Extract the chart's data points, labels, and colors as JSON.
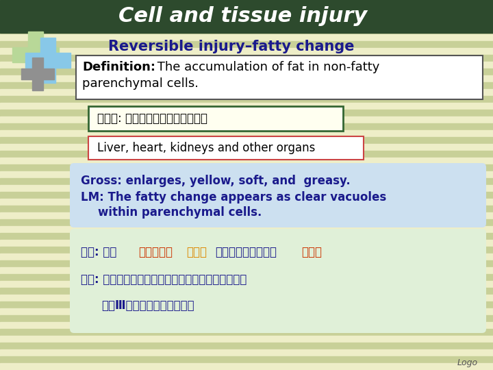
{
  "title": "Cell and tissue injury",
  "title_color": "#FFFFFF",
  "title_bg": "#2d4a2d",
  "subtitle": "Reversible injury–fatty change",
  "subtitle_color": "#1a1a8c",
  "bg_color": "#eeeec8",
  "stripe_color_dark": "#c8d098",
  "stripe_color_light": "#eeeec8",
  "definition_bold": "Definition:",
  "definition_rest1": " The accumulation of fat in non-fatty",
  "definition_rest2": "parenchymal cells.",
  "definition_color": "#000000",
  "chinese_box_text": "脂肪变: 实质细胞内脂肪的异常蚕积",
  "chinese_box_border": "#336633",
  "chinese_box_bg": "#fffff0",
  "organs_text": "Liver, heart, kidneys and other organs",
  "organs_box_border": "#cc4444",
  "organs_box_bg": "#ffffff",
  "gross_line1": "Gross: enlarges, yellow, soft, and  greasy.",
  "gross_line2": "LM: The fatty change appears as clear vacuoles",
  "gross_line3": "      within parenchymal cells.",
  "gross_lm_color": "#1a1a8c",
  "gross_lm_bg": "#cce0f0",
  "rouyan_prefix": "肉眼: 器官",
  "rouyan_red1": "体积增大，",
  "rouyan_orange": "淡黄色",
  "rouyan_blue": "，边缘圆镨，切面呈",
  "rouyan_red2": "油腻感",
  "guangjing_line": "光镜: 细胞内出现边缘较整齐的大小不等的圆形空泡，",
  "sudan_line": "    苏丹Ⅲ呈橘红色，锇酸呈黑色",
  "chinese_bottom_color": "#1a1a8c",
  "chinese_bottom_bg": "#e0f0d8",
  "logo_text": "Logo",
  "cross_green": "#b8d898",
  "cross_cyan": "#88c8e8",
  "cross_gray": "#909090"
}
